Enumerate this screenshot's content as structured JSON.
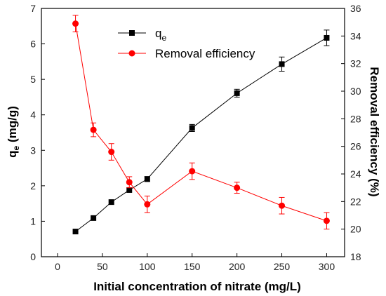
{
  "chart_data": {
    "type": "line",
    "x_values": [
      20,
      40,
      60,
      80,
      100,
      150,
      200,
      250,
      300
    ],
    "xlabel": "Initial concentration of nitrate (mg/L)",
    "xlim": [
      -18,
      320
    ],
    "x_ticks": [
      0,
      50,
      100,
      150,
      200,
      250,
      300
    ],
    "left_axis": {
      "label_main": "q",
      "label_sub": "e",
      "label_suffix": " (mg/g)",
      "ylim": [
        0,
        7
      ],
      "ticks": [
        0,
        1,
        2,
        3,
        4,
        5,
        6,
        7
      ]
    },
    "right_axis": {
      "label": "Removal efficiency (%)",
      "ylim": [
        18,
        36
      ],
      "ticks": [
        18,
        20,
        22,
        24,
        26,
        28,
        30,
        32,
        34,
        36
      ]
    },
    "series": [
      {
        "name_main": "q",
        "name_sub": "e",
        "axis": "left",
        "color": "#000000",
        "marker": "square",
        "values": [
          0.71,
          1.09,
          1.54,
          1.88,
          2.19,
          3.63,
          4.61,
          5.43,
          6.17
        ],
        "errors": [
          0.0,
          0.0,
          0.0,
          0.0,
          0.07,
          0.1,
          0.11,
          0.2,
          0.22
        ]
      },
      {
        "name": "Removal efficiency",
        "axis": "right",
        "color": "#ff0000",
        "marker": "circle",
        "values": [
          34.9,
          27.2,
          25.6,
          23.4,
          21.8,
          24.2,
          23.0,
          21.7,
          20.6
        ],
        "errors": [
          0.6,
          0.5,
          0.6,
          0.4,
          0.6,
          0.6,
          0.4,
          0.6,
          0.6
        ]
      }
    ],
    "legend_position": "top-center"
  }
}
